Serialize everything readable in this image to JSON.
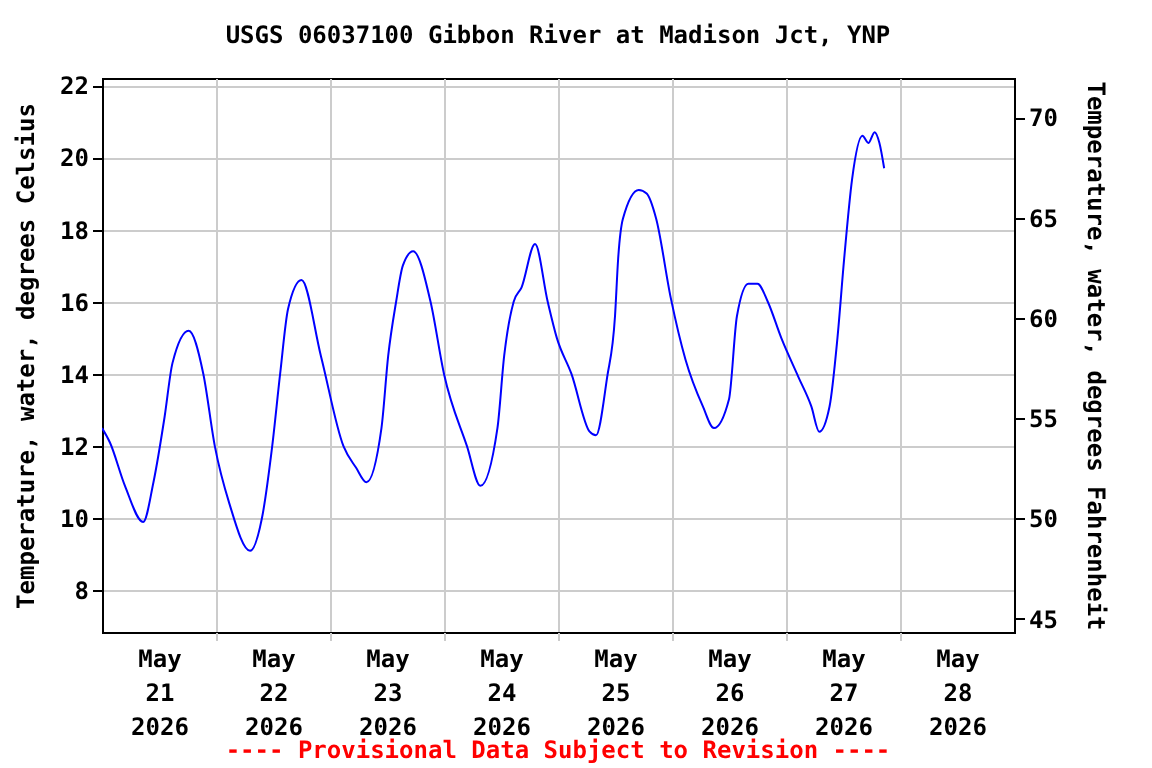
{
  "chart_data": {
    "type": "line",
    "title": "USGS 06037100 Gibbon River at Madison Jct, YNP",
    "ylabel": "Temperature, water, degrees Celsius",
    "y2label": "Temperature, water, degrees Fahrenheit",
    "annotations": [
      "---- Provisional Data Subject to Revision ----"
    ],
    "x": [
      "2026-05-21T00:00",
      "2026-05-21T01:40",
      "2026-05-21T04:50",
      "2026-05-21T08:40",
      "2026-05-21T10:50",
      "2026-05-21T13:10",
      "2026-05-21T14:50",
      "2026-05-21T18:15",
      "2026-05-21T21:20",
      "2026-05-21T23:45",
      "2026-05-22T02:50",
      "2026-05-22T07:10",
      "2026-05-22T09:40",
      "2026-05-22T11:50",
      "2026-05-22T13:30",
      "2026-05-22T15:10",
      "2026-05-22T18:00",
      "2026-05-22T22:05",
      "2026-05-23T02:50",
      "2026-05-23T05:30",
      "2026-05-23T07:40",
      "2026-05-23T10:50",
      "2026-05-23T12:15",
      "2026-05-23T13:55",
      "2026-05-23T15:20",
      "2026-05-23T17:30",
      "2026-05-23T21:10",
      "2026-05-24T00:00",
      "2026-05-24T04:50",
      "2026-05-24T07:40",
      "2026-05-24T11:15",
      "2026-05-24T12:40",
      "2026-05-24T14:40",
      "2026-05-24T16:20",
      "2026-05-24T19:10",
      "2026-05-24T21:50",
      "2026-05-24T23:45",
      "2026-05-25T02:50",
      "2026-05-25T06:40",
      "2026-05-25T08:00",
      "2026-05-25T10:20",
      "2026-05-25T12:00",
      "2026-05-25T12:40",
      "2026-05-25T13:40",
      "2026-05-25T17:00",
      "2026-05-25T18:40",
      "2026-05-25T20:40",
      "2026-05-25T23:45",
      "2026-05-26T02:50",
      "2026-05-26T06:30",
      "2026-05-26T08:50",
      "2026-05-26T12:00",
      "2026-05-26T13:40",
      "2026-05-26T16:05",
      "2026-05-26T18:00",
      "2026-05-26T20:10",
      "2026-05-26T23:00",
      "2026-05-27T02:40",
      "2026-05-27T05:20",
      "2026-05-27T07:00",
      "2026-05-27T09:10",
      "2026-05-27T10:50",
      "2026-05-27T12:15",
      "2026-05-27T13:55",
      "2026-05-27T16:05",
      "2026-05-27T17:20",
      "2026-05-27T18:40",
      "2026-05-27T19:40",
      "2026-05-27T20:40"
    ],
    "series": [
      {
        "color": "#0000ff",
        "values": [
          12.5,
          12.1,
          10.9,
          9.9,
          11.0,
          12.8,
          14.3,
          15.2,
          14.0,
          12.0,
          10.4,
          9.1,
          10.0,
          12.0,
          14.0,
          15.8,
          16.6,
          14.5,
          12.0,
          11.4,
          11.0,
          12.5,
          14.5,
          16.0,
          17.0,
          17.4,
          16.0,
          14.0,
          12.0,
          10.9,
          12.5,
          14.5,
          16.0,
          16.4,
          17.6,
          16.0,
          15.0,
          14.0,
          12.4,
          12.3,
          13.9,
          15.6,
          17.2,
          18.3,
          19.1,
          19.0,
          18.3,
          16.1,
          14.4,
          13.1,
          12.5,
          13.3,
          15.6,
          16.5,
          16.5,
          16.0,
          15.0,
          13.9,
          13.1,
          12.4,
          13.1,
          15.0,
          17.2,
          19.4,
          20.6,
          20.4,
          20.7,
          20.4,
          19.7
        ]
      }
    ],
    "xlim": [
      "2026-05-21T00:00",
      "2026-05-29T00:00"
    ],
    "xticks": [
      {
        "value": "2026-05-21T12:00",
        "label": "May 21 2026"
      },
      {
        "value": "2026-05-22T00:00",
        "label": null
      },
      {
        "value": "2026-05-22T12:00",
        "label": "May 22 2026"
      },
      {
        "value": "2026-05-23T00:00",
        "label": null
      },
      {
        "value": "2026-05-23T12:00",
        "label": "May 23 2026"
      },
      {
        "value": "2026-05-24T00:00",
        "label": null
      },
      {
        "value": "2026-05-24T12:00",
        "label": "May 24 2026"
      },
      {
        "value": "2026-05-25T00:00",
        "label": null
      },
      {
        "value": "2026-05-25T12:00",
        "label": "May 25 2026"
      },
      {
        "value": "2026-05-26T00:00",
        "label": null
      },
      {
        "value": "2026-05-26T12:00",
        "label": "May 26 2026"
      },
      {
        "value": "2026-05-27T00:00",
        "label": null
      },
      {
        "value": "2026-05-27T12:00",
        "label": "May 27 2026"
      },
      {
        "value": "2026-05-28T00:00",
        "label": null
      },
      {
        "value": "2026-05-28T12:00",
        "label": "May 28 2026"
      }
    ],
    "ylim": [
      6.85,
      22.2
    ],
    "yticks": [
      8,
      10,
      12,
      14,
      16,
      18,
      20,
      22
    ],
    "y2lim": [
      44.33,
      71.96
    ],
    "y2ticks": [
      45,
      50,
      55,
      60,
      65,
      70
    ],
    "grid": true,
    "marker": "none",
    "line_style": "solid"
  }
}
